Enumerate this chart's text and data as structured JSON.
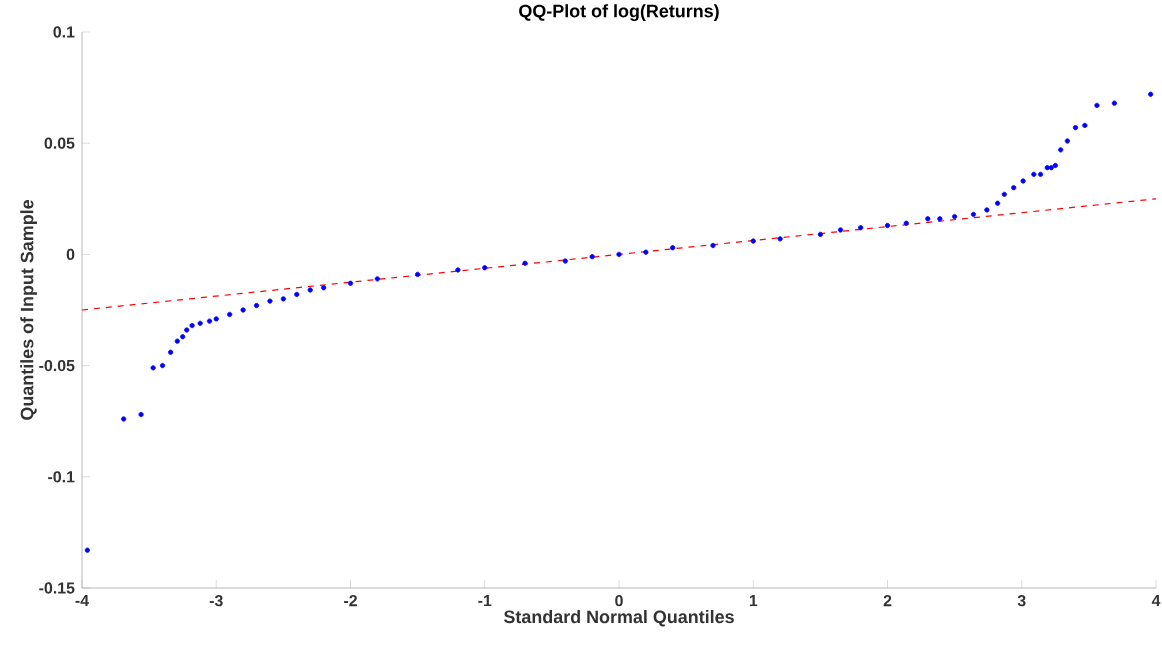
{
  "chart_data": {
    "type": "scatter",
    "title": "QQ-Plot of log(Returns)",
    "xlabel": "Standard Normal Quantiles",
    "ylabel": "Quantiles of Input Sample",
    "xlim": [
      -4,
      4
    ],
    "ylim": [
      -0.15,
      0.1
    ],
    "xticks": [
      -4,
      -3,
      -2,
      -1,
      0,
      1,
      2,
      3,
      4
    ],
    "yticks": [
      -0.15,
      -0.1,
      -0.05,
      0,
      0.05,
      0.1
    ],
    "grid": false,
    "series": [
      {
        "type": "line",
        "color": "#ff0000",
        "marker": "none",
        "line_style": "dashed",
        "x": [
          -4,
          4
        ],
        "values": [
          -0.025,
          0.025
        ]
      },
      {
        "color": "#0000ff",
        "marker": "circle",
        "x": [
          -3.96,
          -3.69,
          -3.56,
          -3.47,
          -3.4,
          -3.34,
          -3.29,
          -3.25,
          -3.22,
          -3.18,
          -3.12,
          -3.05,
          -3.0,
          -2.9,
          -2.8,
          -2.7,
          -2.6,
          -2.5,
          -2.4,
          -2.3,
          -2.2,
          -2.0,
          -1.8,
          -1.5,
          -1.2,
          -1.0,
          -0.7,
          -0.4,
          -0.2,
          0,
          0.2,
          0.4,
          0.7,
          1.0,
          1.2,
          1.5,
          1.65,
          1.8,
          2.0,
          2.14,
          2.3,
          2.39,
          2.5,
          2.64,
          2.74,
          2.82,
          2.87,
          2.94,
          3.01,
          3.09,
          3.14,
          3.19,
          3.22,
          3.25,
          3.29,
          3.34,
          3.4,
          3.47,
          3.56,
          3.69,
          3.96
        ],
        "values": [
          -0.133,
          -0.074,
          -0.072,
          -0.051,
          -0.05,
          -0.044,
          -0.039,
          -0.037,
          -0.034,
          -0.032,
          -0.031,
          -0.03,
          -0.029,
          -0.027,
          -0.025,
          -0.023,
          -0.021,
          -0.02,
          -0.018,
          -0.016,
          -0.015,
          -0.013,
          -0.011,
          -0.009,
          -0.007,
          -0.006,
          -0.004,
          -0.003,
          -0.001,
          0,
          0.001,
          0.003,
          0.004,
          0.006,
          0.007,
          0.009,
          0.011,
          0.012,
          0.013,
          0.014,
          0.016,
          0.016,
          0.017,
          0.018,
          0.02,
          0.023,
          0.027,
          0.03,
          0.033,
          0.036,
          0.036,
          0.039,
          0.039,
          0.04,
          0.047,
          0.051,
          0.057,
          0.058,
          0.067,
          0.068,
          0.072
        ]
      }
    ]
  }
}
